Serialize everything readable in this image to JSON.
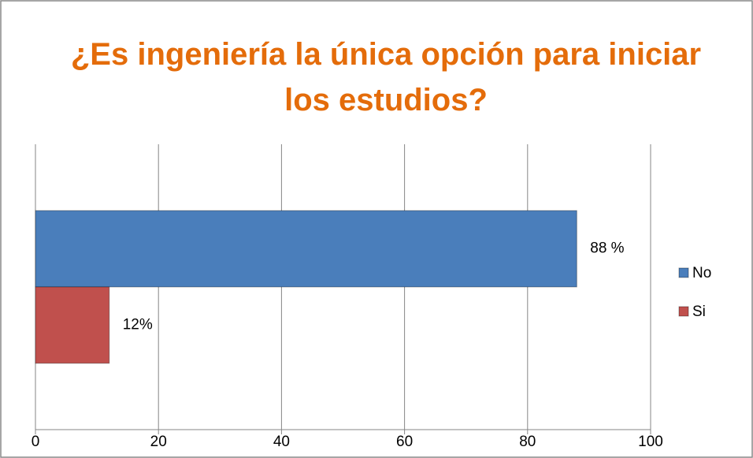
{
  "chart_data": {
    "type": "bar",
    "orientation": "horizontal",
    "title": "¿Es ingeniería la única opción para iniciar los estudios?",
    "categories": [
      null
    ],
    "series": [
      {
        "name": "No",
        "color": "#4a7ebb",
        "values": [
          88
        ],
        "value_labels": [
          "88 %"
        ]
      },
      {
        "name": "Si",
        "color": "#c0504d",
        "values": [
          12
        ],
        "value_labels": [
          "12%"
        ]
      }
    ],
    "xlim": [
      0,
      100
    ],
    "xticks": [
      0,
      20,
      40,
      60,
      80,
      100
    ],
    "grid": true,
    "legend": "right"
  }
}
